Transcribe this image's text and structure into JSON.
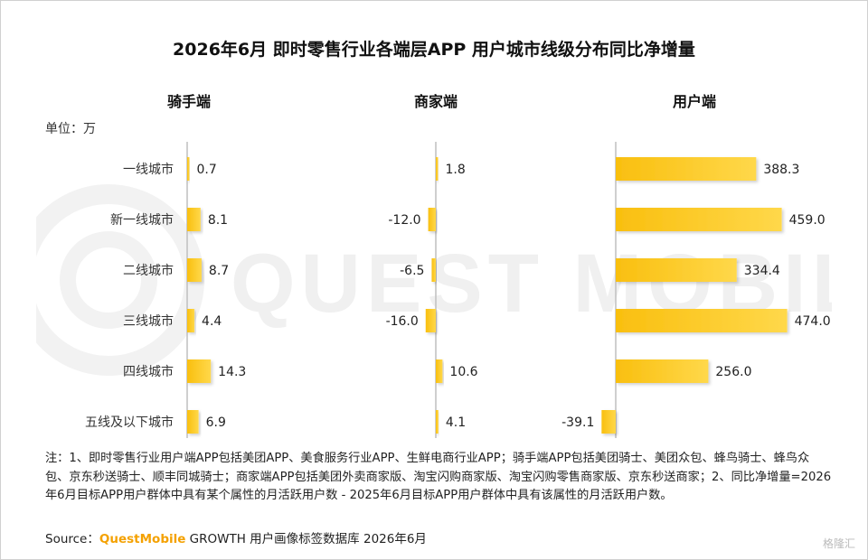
{
  "title": "2026年6月 即时零售行业各端层APP 用户城市线级分布同比净增量",
  "unit": "单位：万",
  "watermark": "QUEST MOBILE",
  "corner_logo": "格隆汇",
  "note": "注：1、即时零售行业用户端APP包括美团APP、美食服务行业APP、生鲜电商行业APP；骑手端APP包括美团骑士、美团众包、蜂鸟骑士、蜂鸟众包、京东秒送骑士、顺丰同城骑士；商家端APP包括美团外卖商家版、淘宝闪购商家版、淘宝闪购零售商家版、京东秒送商家；2、同比净增量=2026年6月目标APP用户群体中具有某个属性的月活跃用户数 - 2025年6月目标APP用户群体中具有该属性的月活跃用户数。",
  "source": {
    "label": "Source：",
    "brand": "QuestMobile",
    "rest": " GROWTH 用户画像标签数据库 2026年6月"
  },
  "colors": {
    "bar": "#f9bf0f",
    "bar_light": "#ffd84a",
    "axis": "#bfbfbf",
    "brand": "#f4a100"
  },
  "chart_data": {
    "type": "bar",
    "orientation": "horizontal",
    "title": "2026年6月 即时零售行业各端层APP 用户城市线级分布同比净增量",
    "unit": "单位：万",
    "categories": [
      "一线城市",
      "新一线城市",
      "二线城市",
      "三线城市",
      "四线城市",
      "五线及以下城市"
    ],
    "series": [
      {
        "name": "骑手端",
        "values": [
          0.7,
          8.1,
          8.7,
          4.4,
          14.3,
          6.9
        ],
        "labels": [
          "0.7",
          "8.1",
          "8.7",
          "4.4",
          "14.3",
          "6.9"
        ]
      },
      {
        "name": "商家端",
        "values": [
          1.8,
          -12.0,
          -6.5,
          -16.0,
          10.6,
          4.1
        ],
        "labels": [
          "1.8",
          "-12.0",
          "-6.5",
          "-16.0",
          "10.6",
          "4.1"
        ]
      },
      {
        "name": "用户端",
        "values": [
          388.3,
          459.0,
          334.4,
          474.0,
          256.0,
          -39.1
        ],
        "labels": [
          "388.3",
          "459.0",
          "334.4",
          "474.0",
          "256.0",
          "-39.1"
        ]
      }
    ],
    "grid": false,
    "legend": "none"
  }
}
